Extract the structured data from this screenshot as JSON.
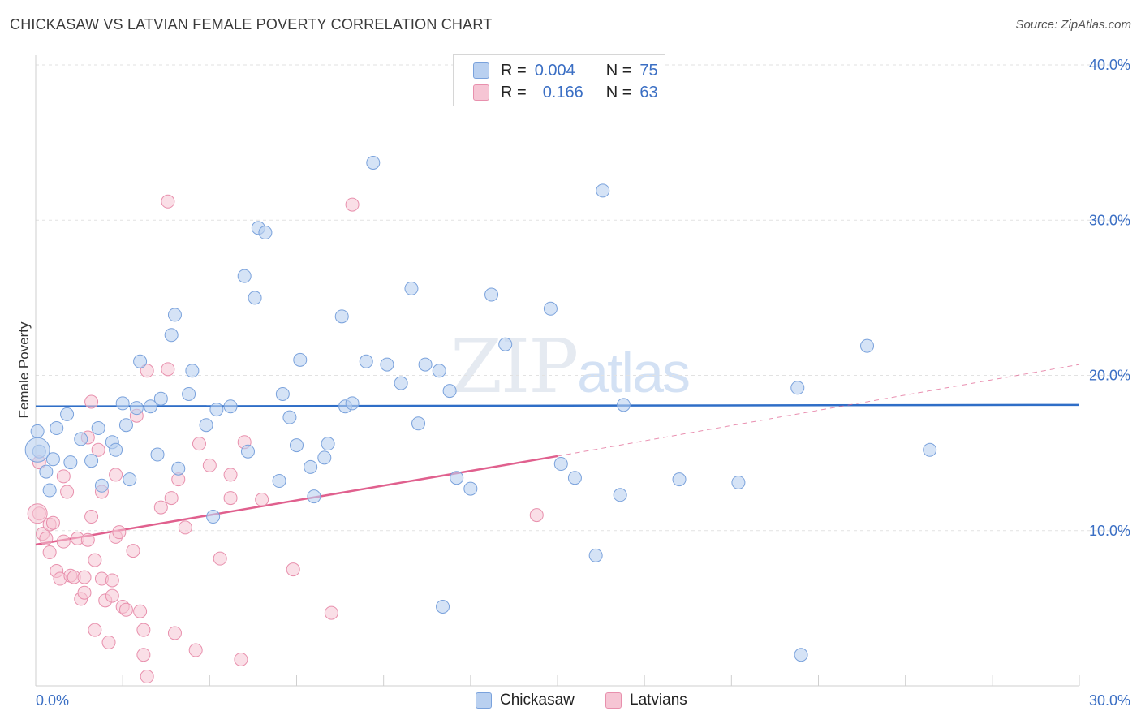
{
  "header": {
    "title": "CHICKASAW VS LATVIAN FEMALE POVERTY CORRELATION CHART",
    "source": "Source: ZipAtlas.com"
  },
  "legend": {
    "rows": [
      {
        "r_label": "R =",
        "r_value": "0.004",
        "n_label": "N =",
        "n_value": "75"
      },
      {
        "r_label": "R =",
        "r_value": "0.166",
        "n_label": "N =",
        "n_value": "63"
      }
    ]
  },
  "bottom_legend": {
    "chickasaw": "Chickasaw",
    "latvians": "Latvians"
  },
  "watermark": {
    "zip": "ZIP",
    "atlas": "atlas"
  },
  "colors": {
    "blue_fill": "#b9d0f0",
    "blue_stroke": "#7aa2dc",
    "blue_line": "#2f6ec7",
    "pink_fill": "#f6c5d4",
    "pink_stroke": "#e890ad",
    "pink_line": "#e0608e",
    "tick_text": "#3b6fc4"
  },
  "chart_data": {
    "type": "scatter",
    "title": "CHICKASAW VS LATVIAN FEMALE POVERTY CORRELATION CHART",
    "xlabel": "",
    "ylabel": "Female Poverty",
    "xlim": [
      0,
      30
    ],
    "ylim": [
      0,
      40
    ],
    "x_tick_labels": [
      {
        "value": 0,
        "label": "0.0%"
      },
      {
        "value": 30,
        "label": "30.0%"
      }
    ],
    "y_tick_labels": [
      {
        "value": 10,
        "label": "10.0%"
      },
      {
        "value": 20,
        "label": "20.0%"
      },
      {
        "value": 30,
        "label": "30.0%"
      },
      {
        "value": 40,
        "label": "40.0%"
      }
    ],
    "series": [
      {
        "name": "Chickasaw",
        "color": "blue",
        "R": 0.004,
        "N": 75,
        "trend": {
          "x": [
            0,
            30
          ],
          "y": [
            18.0,
            18.1
          ],
          "style": "solid"
        },
        "points": [
          [
            0.1,
            15.1
          ],
          [
            0.3,
            13.8
          ],
          [
            0.5,
            14.6
          ],
          [
            0.6,
            16.6
          ],
          [
            0.9,
            17.5
          ],
          [
            1.0,
            14.4
          ],
          [
            1.3,
            15.9
          ],
          [
            1.6,
            14.5
          ],
          [
            1.8,
            16.6
          ],
          [
            1.9,
            12.9
          ],
          [
            2.2,
            15.7
          ],
          [
            2.3,
            15.2
          ],
          [
            2.5,
            18.2
          ],
          [
            2.6,
            16.8
          ],
          [
            2.9,
            17.9
          ],
          [
            3.0,
            20.9
          ],
          [
            3.3,
            18.0
          ],
          [
            3.5,
            14.9
          ],
          [
            3.6,
            18.5
          ],
          [
            3.9,
            22.6
          ],
          [
            4.0,
            23.9
          ],
          [
            4.1,
            14.0
          ],
          [
            4.4,
            18.8
          ],
          [
            4.5,
            20.3
          ],
          [
            4.9,
            16.8
          ],
          [
            5.1,
            10.9
          ],
          [
            5.2,
            17.8
          ],
          [
            5.6,
            18.0
          ],
          [
            6.0,
            26.4
          ],
          [
            6.1,
            15.1
          ],
          [
            6.3,
            25.0
          ],
          [
            6.4,
            29.5
          ],
          [
            6.6,
            29.2
          ],
          [
            7.0,
            13.2
          ],
          [
            7.1,
            18.8
          ],
          [
            7.3,
            17.3
          ],
          [
            7.5,
            15.5
          ],
          [
            7.6,
            21.0
          ],
          [
            7.9,
            14.1
          ],
          [
            8.0,
            12.2
          ],
          [
            8.3,
            14.7
          ],
          [
            8.4,
            15.6
          ],
          [
            8.8,
            23.8
          ],
          [
            8.9,
            18.0
          ],
          [
            9.1,
            18.2
          ],
          [
            9.5,
            20.9
          ],
          [
            9.7,
            33.7
          ],
          [
            10.1,
            20.7
          ],
          [
            10.5,
            19.5
          ],
          [
            10.8,
            25.6
          ],
          [
            11.0,
            16.9
          ],
          [
            11.2,
            20.7
          ],
          [
            11.6,
            20.3
          ],
          [
            11.7,
            5.1
          ],
          [
            11.9,
            19.0
          ],
          [
            12.1,
            13.4
          ],
          [
            12.5,
            12.7
          ],
          [
            13.1,
            25.2
          ],
          [
            13.5,
            22.0
          ],
          [
            14.8,
            24.3
          ],
          [
            15.1,
            14.3
          ],
          [
            15.5,
            13.4
          ],
          [
            16.1,
            8.4
          ],
          [
            16.3,
            31.9
          ],
          [
            16.8,
            12.3
          ],
          [
            16.9,
            18.1
          ],
          [
            18.5,
            13.3
          ],
          [
            20.2,
            13.1
          ],
          [
            21.9,
            19.2
          ],
          [
            22.0,
            2.0
          ],
          [
            23.9,
            21.9
          ],
          [
            25.7,
            15.2
          ],
          [
            0.05,
            16.4
          ],
          [
            0.4,
            12.6
          ],
          [
            2.7,
            13.3
          ]
        ]
      },
      {
        "name": "Latvians",
        "color": "pink",
        "R": 0.166,
        "N": 63,
        "trend": {
          "x": [
            0,
            15
          ],
          "y": [
            9.1,
            14.8
          ],
          "dashed_to": [
            30,
            20.7
          ]
        },
        "points": [
          [
            0.1,
            11.1
          ],
          [
            0.1,
            14.4
          ],
          [
            0.2,
            9.8
          ],
          [
            0.3,
            9.5
          ],
          [
            0.4,
            8.6
          ],
          [
            0.4,
            10.4
          ],
          [
            0.5,
            10.5
          ],
          [
            0.6,
            7.4
          ],
          [
            0.7,
            6.9
          ],
          [
            0.8,
            9.3
          ],
          [
            0.8,
            13.5
          ],
          [
            0.9,
            12.5
          ],
          [
            1.0,
            7.1
          ],
          [
            1.1,
            7.0
          ],
          [
            1.2,
            9.5
          ],
          [
            1.3,
            5.6
          ],
          [
            1.4,
            6.0
          ],
          [
            1.4,
            7.0
          ],
          [
            1.5,
            9.4
          ],
          [
            1.5,
            16.0
          ],
          [
            1.6,
            10.9
          ],
          [
            1.6,
            18.3
          ],
          [
            1.7,
            3.6
          ],
          [
            1.7,
            8.1
          ],
          [
            1.8,
            15.2
          ],
          [
            1.9,
            12.5
          ],
          [
            1.9,
            6.9
          ],
          [
            2.0,
            5.5
          ],
          [
            2.1,
            2.8
          ],
          [
            2.2,
            6.8
          ],
          [
            2.2,
            5.8
          ],
          [
            2.3,
            13.6
          ],
          [
            2.3,
            9.6
          ],
          [
            2.4,
            9.9
          ],
          [
            2.5,
            5.1
          ],
          [
            2.6,
            4.9
          ],
          [
            2.8,
            8.7
          ],
          [
            2.9,
            17.4
          ],
          [
            3.0,
            4.8
          ],
          [
            3.1,
            3.6
          ],
          [
            3.1,
            2.0
          ],
          [
            3.2,
            0.6
          ],
          [
            3.2,
            20.3
          ],
          [
            3.6,
            11.5
          ],
          [
            3.8,
            20.4
          ],
          [
            3.8,
            31.2
          ],
          [
            3.9,
            12.1
          ],
          [
            4.0,
            3.4
          ],
          [
            4.1,
            13.3
          ],
          [
            4.3,
            10.2
          ],
          [
            4.6,
            2.3
          ],
          [
            4.7,
            15.6
          ],
          [
            5.0,
            14.2
          ],
          [
            5.3,
            8.2
          ],
          [
            5.6,
            12.1
          ],
          [
            5.6,
            13.6
          ],
          [
            5.9,
            1.7
          ],
          [
            6.0,
            15.7
          ],
          [
            6.5,
            12.0
          ],
          [
            7.4,
            7.5
          ],
          [
            8.5,
            4.7
          ],
          [
            9.1,
            31.0
          ],
          [
            14.4,
            11.0
          ]
        ]
      }
    ]
  }
}
